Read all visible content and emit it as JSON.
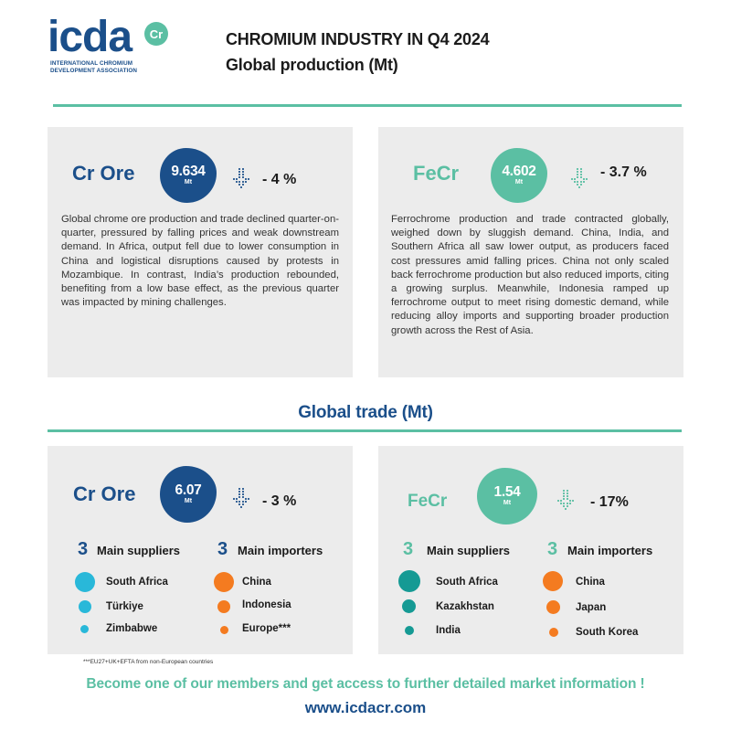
{
  "brand": {
    "logo_letters": "icda",
    "logo_badge": "Cr",
    "logo_sub_line1": "INTERNATIONAL CHROMIUM",
    "logo_sub_line2": "DEVELOPMENT ASSOCIATION",
    "colors": {
      "navy": "#1b4f8a",
      "teal": "#5bbfa3",
      "cyan": "#29b8d9",
      "tealDark": "#159a94",
      "orange": "#f47b20"
    }
  },
  "header": {
    "title": "CHROMIUM INDUSTRY IN Q4 2024",
    "subtitle": "Global production (Mt)"
  },
  "production": {
    "cr_ore": {
      "name": "Cr Ore",
      "value": "9.634",
      "unit": "Mt",
      "change": "- 4 %",
      "trend_icon": "arrow-down-icon",
      "description": "Global chrome ore production and trade declined quarter-on-quarter, pressured by falling prices and weak downstream demand. In Africa, output fell due to lower consumption in China and logistical disruptions caused by protests in Mozambique. In contrast, India’s production rebounded, benefiting from a low base effect, as the previous quarter was impacted by mining challenges."
    },
    "fecr": {
      "name": "FeCr",
      "value": "4.602",
      "unit": "Mt",
      "change": "- 3.7 %",
      "trend_icon": "arrow-down-icon",
      "description": "Ferrochrome production and trade contracted globally, weighed down by sluggish demand. China, India, and Southern Africa all saw lower output, as producers faced cost pressures amid falling prices. China not only scaled back ferrochrome production but also reduced imports, citing a growing surplus. Meanwhile, Indonesia ramped up ferrochrome output to meet rising domestic demand, while reducing alloy imports and supporting broader production growth across the Rest of Asia."
    }
  },
  "trade": {
    "title": "Global trade (Mt)",
    "cr_ore": {
      "name": "Cr Ore",
      "value": "6.07",
      "unit": "Mt",
      "change": "- 3 %",
      "suppliers_count": "3",
      "suppliers_label": "Main suppliers",
      "importers_count": "3",
      "importers_label": "Main importers",
      "suppliers": [
        "South Africa",
        "Türkiye",
        "Zimbabwe"
      ],
      "importers": [
        "China",
        "Indonesia",
        "Europe***"
      ]
    },
    "fecr": {
      "name": "FeCr",
      "value": "1.54",
      "unit": "Mt",
      "change": "- 17%",
      "suppliers_count": "3",
      "suppliers_label": "Main suppliers",
      "importers_count": "3",
      "importers_label": "Main importers",
      "suppliers": [
        "South Africa",
        "Kazakhstan",
        "India"
      ],
      "importers": [
        "China",
        "Japan",
        "South Korea"
      ]
    }
  },
  "footer": {
    "footnote": "***EU27+UK+EFTA from non-European countries",
    "cta": "Become one of our members and get access to further detailed market information !",
    "website": "www.icdacr.com"
  }
}
